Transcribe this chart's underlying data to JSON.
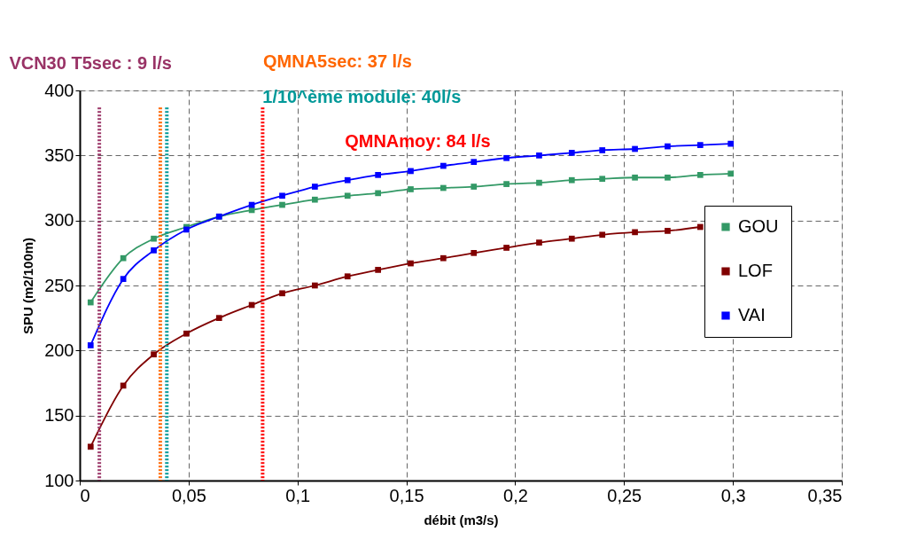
{
  "chart_data": {
    "type": "line",
    "xlabel": "débit (m3/s)",
    "ylabel": "SPU (m2/100m)",
    "x": [
      0.005,
      0.02,
      0.034,
      0.049,
      0.064,
      0.079,
      0.093,
      0.108,
      0.123,
      0.137,
      0.152,
      0.167,
      0.181,
      0.196,
      0.211,
      0.226,
      0.24,
      0.255,
      0.27,
      0.285,
      0.299
    ],
    "series": [
      {
        "name": "GOU",
        "color": "#339966",
        "values": [
          237,
          271,
          286,
          295,
          303,
          308,
          312,
          316,
          319,
          321,
          324,
          325,
          326,
          328,
          329,
          331,
          332,
          333,
          333,
          335,
          336
        ]
      },
      {
        "name": "LOF",
        "color": "#800000",
        "values": [
          126,
          173,
          197,
          213,
          225,
          235,
          244,
          250,
          257,
          262,
          267,
          271,
          275,
          279,
          283,
          286,
          289,
          291,
          292,
          295,
          null
        ]
      },
      {
        "name": "VAI",
        "color": "#0000ff",
        "values": [
          204,
          255,
          277,
          293,
          303,
          312,
          319,
          326,
          331,
          335,
          338,
          342,
          345,
          348,
          350,
          352,
          354,
          355,
          357,
          358,
          359
        ]
      }
    ],
    "xlim": [
      0,
      0.35
    ],
    "xticks": [
      0,
      {
        "value": 0.05,
        "label": "0,05"
      },
      {
        "value": 0.1,
        "label": "0,1"
      },
      {
        "value": 0.15,
        "label": "0,15"
      },
      {
        "value": 0.2,
        "label": "0,2"
      },
      {
        "value": 0.25,
        "label": "0,25"
      },
      {
        "value": 0.3,
        "label": "0,3"
      },
      {
        "value": 0.35,
        "label": "0,35"
      }
    ],
    "ylim": [
      100,
      400
    ],
    "yticks": [
      100,
      150,
      200,
      250,
      300,
      350,
      400
    ],
    "ref_lines": [
      {
        "axis": "x",
        "value": 0.009,
        "label": "VCN30 T5sec : 9 l/s",
        "color": "#993366",
        "line_style": "dotted"
      },
      {
        "axis": "x",
        "value": 0.037,
        "label": "QMNA5sec: 37 l/s",
        "color": "#ff6600",
        "line_style": "dotted"
      },
      {
        "axis": "x",
        "value": 0.04,
        "label": "1/10^ème module: 40l/s",
        "color": "#009999",
        "line_style": "dotted"
      },
      {
        "axis": "x",
        "value": 0.084,
        "label": "QMNAmoy: 84 l/s",
        "color": "#ff0000",
        "line_style": "dotted"
      }
    ],
    "grid": true,
    "legend": "right",
    "marker": "square",
    "line_style": "solid"
  }
}
